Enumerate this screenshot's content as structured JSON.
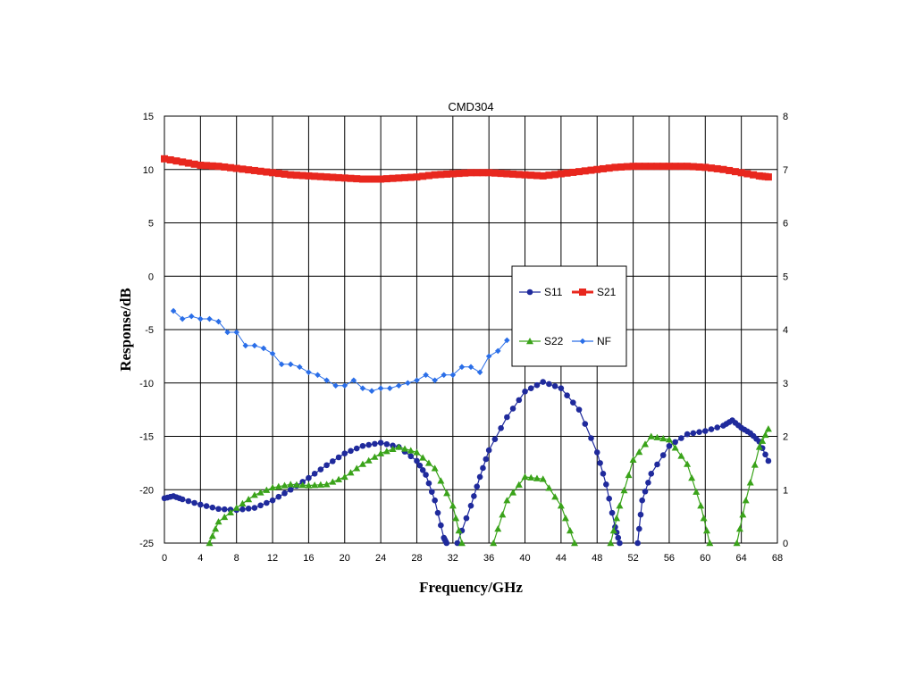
{
  "chart_data": {
    "type": "line",
    "title": "CMD304",
    "xlabel": "Frequency/GHz",
    "ylabel": "Response/dB",
    "xlim": [
      0,
      68
    ],
    "ylim": [
      -25,
      15
    ],
    "y2lim": [
      0,
      8
    ],
    "x_ticks": [
      "0",
      "4",
      "8",
      "12",
      "16",
      "20",
      "24",
      "28",
      "32",
      "36",
      "40",
      "44",
      "48",
      "52",
      "56",
      "60",
      "64",
      "68"
    ],
    "y_ticks": [
      "15",
      "10",
      "5",
      "0",
      "-5",
      "-10",
      "-15",
      "-20",
      "-25"
    ],
    "y2_ticks": [
      "8",
      "7",
      "6",
      "5",
      "4",
      "3",
      "2",
      "1",
      "0"
    ],
    "grid": true,
    "legend_position": "center-right",
    "series": [
      {
        "name": "S11",
        "color": "#1f2a9c",
        "marker": "circle",
        "axis": "left",
        "points": [
          [
            0,
            -20.8
          ],
          [
            1,
            -20.6
          ],
          [
            2,
            -20.9
          ],
          [
            4,
            -21.4
          ],
          [
            6,
            -21.8
          ],
          [
            8,
            -21.9
          ],
          [
            10,
            -21.7
          ],
          [
            12,
            -21.0
          ],
          [
            14,
            -20.0
          ],
          [
            16,
            -18.9
          ],
          [
            18,
            -17.7
          ],
          [
            20,
            -16.6
          ],
          [
            22,
            -15.9
          ],
          [
            24,
            -15.6
          ],
          [
            26,
            -16.0
          ],
          [
            28,
            -17.3
          ],
          [
            29,
            -18.6
          ],
          [
            30,
            -21.0
          ],
          [
            31,
            -24.5
          ],
          [
            31.3,
            -25
          ],
          [
            32.5,
            -25
          ],
          [
            34,
            -21.5
          ],
          [
            35,
            -18.8
          ],
          [
            36,
            -16.3
          ],
          [
            38,
            -13.2
          ],
          [
            40,
            -10.8
          ],
          [
            42,
            -9.9
          ],
          [
            44,
            -10.5
          ],
          [
            46,
            -12.5
          ],
          [
            48,
            -16.5
          ],
          [
            49,
            -19.5
          ],
          [
            50,
            -23.5
          ],
          [
            50.5,
            -25
          ],
          [
            52.5,
            -25
          ],
          [
            53,
            -21.0
          ],
          [
            54,
            -18.5
          ],
          [
            56,
            -15.9
          ],
          [
            58,
            -14.8
          ],
          [
            60,
            -14.5
          ],
          [
            62,
            -14.0
          ],
          [
            63,
            -13.5
          ],
          [
            64,
            -14.2
          ],
          [
            65,
            -14.7
          ],
          [
            66,
            -15.5
          ],
          [
            67,
            -17.3
          ]
        ]
      },
      {
        "name": "S21",
        "color": "#e8271e",
        "marker": "square",
        "axis": "left",
        "points": [
          [
            0,
            11.0
          ],
          [
            2,
            10.7
          ],
          [
            4,
            10.4
          ],
          [
            6,
            10.3
          ],
          [
            8,
            10.1
          ],
          [
            10,
            9.9
          ],
          [
            12,
            9.7
          ],
          [
            14,
            9.5
          ],
          [
            16,
            9.4
          ],
          [
            18,
            9.3
          ],
          [
            20,
            9.2
          ],
          [
            22,
            9.1
          ],
          [
            24,
            9.1
          ],
          [
            26,
            9.2
          ],
          [
            28,
            9.3
          ],
          [
            30,
            9.5
          ],
          [
            32,
            9.6
          ],
          [
            34,
            9.7
          ],
          [
            36,
            9.7
          ],
          [
            38,
            9.6
          ],
          [
            40,
            9.5
          ],
          [
            42,
            9.4
          ],
          [
            44,
            9.6
          ],
          [
            46,
            9.8
          ],
          [
            48,
            10.0
          ],
          [
            50,
            10.2
          ],
          [
            52,
            10.3
          ],
          [
            54,
            10.3
          ],
          [
            56,
            10.3
          ],
          [
            58,
            10.3
          ],
          [
            60,
            10.2
          ],
          [
            62,
            10.0
          ],
          [
            64,
            9.7
          ],
          [
            66,
            9.4
          ],
          [
            67,
            9.3
          ]
        ]
      },
      {
        "name": "S22",
        "color": "#3aa31a",
        "marker": "triangle",
        "axis": "left",
        "points": [
          [
            5,
            -25
          ],
          [
            6,
            -23.0
          ],
          [
            8,
            -21.7
          ],
          [
            10,
            -20.5
          ],
          [
            12,
            -19.8
          ],
          [
            14,
            -19.5
          ],
          [
            16,
            -19.6
          ],
          [
            18,
            -19.5
          ],
          [
            20,
            -18.8
          ],
          [
            22,
            -17.6
          ],
          [
            24,
            -16.6
          ],
          [
            26,
            -16.0
          ],
          [
            28,
            -16.5
          ],
          [
            30,
            -18.0
          ],
          [
            32,
            -21.5
          ],
          [
            33,
            -25
          ],
          [
            36.5,
            -25
          ],
          [
            38,
            -21.0
          ],
          [
            40,
            -18.8
          ],
          [
            42,
            -19.0
          ],
          [
            44,
            -21.5
          ],
          [
            45.5,
            -25
          ],
          [
            49.5,
            -25
          ],
          [
            50.5,
            -21.5
          ],
          [
            52,
            -17.2
          ],
          [
            54,
            -15.0
          ],
          [
            56,
            -15.3
          ],
          [
            58,
            -17.6
          ],
          [
            59.5,
            -21.5
          ],
          [
            60.5,
            -25
          ],
          [
            63.5,
            -25
          ],
          [
            64.5,
            -21.0
          ],
          [
            66,
            -16.0
          ],
          [
            67,
            -14.3
          ]
        ]
      },
      {
        "name": "NF",
        "color": "#2a6ee8",
        "marker": "diamond",
        "axis": "right",
        "points": [
          [
            1,
            4.35
          ],
          [
            2,
            4.2
          ],
          [
            3,
            4.25
          ],
          [
            4,
            4.2
          ],
          [
            5,
            4.2
          ],
          [
            6,
            4.15
          ],
          [
            7,
            3.95
          ],
          [
            8,
            3.95
          ],
          [
            9,
            3.7
          ],
          [
            10,
            3.7
          ],
          [
            11,
            3.65
          ],
          [
            12,
            3.55
          ],
          [
            13,
            3.35
          ],
          [
            14,
            3.35
          ],
          [
            15,
            3.3
          ],
          [
            16,
            3.2
          ],
          [
            17,
            3.15
          ],
          [
            18,
            3.05
          ],
          [
            19,
            2.95
          ],
          [
            20,
            2.95
          ],
          [
            21,
            3.05
          ],
          [
            22,
            2.9
          ],
          [
            23,
            2.85
          ],
          [
            24,
            2.9
          ],
          [
            25,
            2.9
          ],
          [
            26,
            2.95
          ],
          [
            27,
            3.0
          ],
          [
            28,
            3.05
          ],
          [
            29,
            3.15
          ],
          [
            30,
            3.05
          ],
          [
            31,
            3.15
          ],
          [
            32,
            3.15
          ],
          [
            33,
            3.3
          ],
          [
            34,
            3.3
          ],
          [
            35,
            3.2
          ],
          [
            36,
            3.5
          ],
          [
            37,
            3.6
          ],
          [
            38,
            3.8
          ]
        ]
      }
    ]
  }
}
